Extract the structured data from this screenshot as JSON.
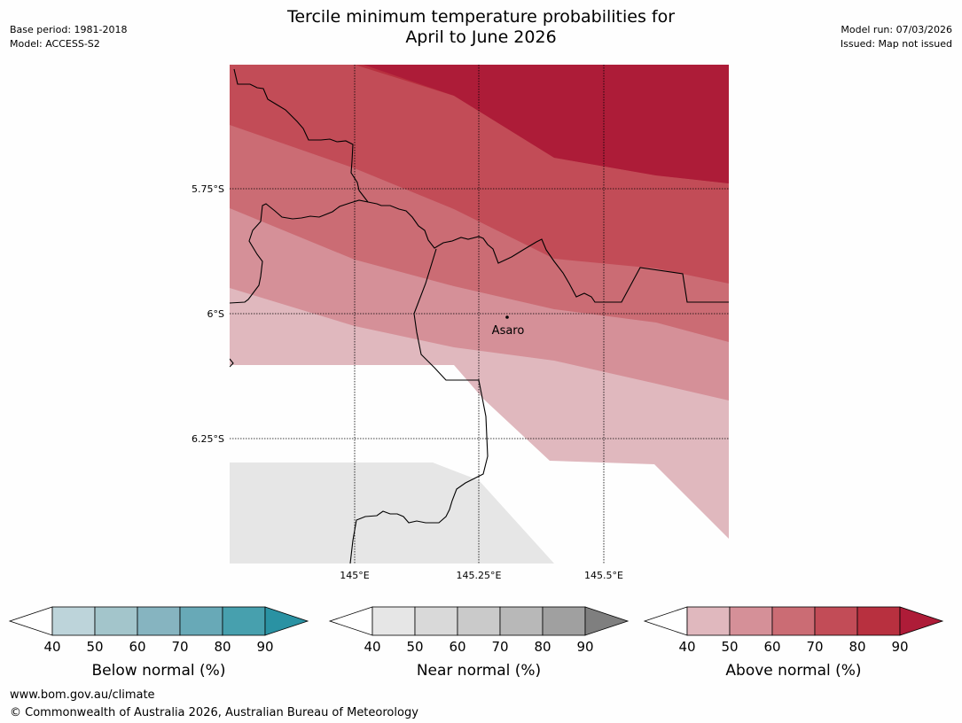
{
  "header": {
    "title_line1": "Tercile minimum temperature probabilities for",
    "title_line2": "April to June 2026",
    "base_period": "Base period: 1981-2018",
    "model": "Model: ACCESS-S2",
    "model_run": "Model run: 07/03/2026",
    "issued": "Issued: Map not issued"
  },
  "map": {
    "lat_labels": [
      "5.75°S",
      "6°S",
      "6.25°S"
    ],
    "lon_labels": [
      "145°E",
      "145.25°E",
      "145.5°E"
    ],
    "place": "Asaro",
    "colors": {
      "above": [
        "#e0b8be",
        "#d59098",
        "#cb6c74",
        "#c24c57",
        "#b8303f",
        "#ad1c38"
      ],
      "near": "#e6e6e6",
      "coast": "#000000"
    }
  },
  "legends": [
    {
      "title": "Below normal (%)",
      "ticks": [
        "40",
        "50",
        "60",
        "70",
        "80",
        "90"
      ],
      "colors": [
        "#bdd4da",
        "#a3c5cb",
        "#86b4c0",
        "#68a9b7",
        "#47a0ae",
        "#2a92a3"
      ]
    },
    {
      "title": "Near normal (%)",
      "ticks": [
        "40",
        "50",
        "60",
        "70",
        "80",
        "90"
      ],
      "colors": [
        "#e6e6e6",
        "#d9d9d9",
        "#cacaca",
        "#b8b8b8",
        "#a0a0a0",
        "#7f7f7f"
      ]
    },
    {
      "title": "Above normal (%)",
      "ticks": [
        "40",
        "50",
        "60",
        "70",
        "80",
        "90"
      ],
      "colors": [
        "#e0b8be",
        "#d59098",
        "#cb6c74",
        "#c24c57",
        "#b8303f",
        "#ae1c38"
      ]
    }
  ],
  "footer": {
    "url": "www.bom.gov.au/climate",
    "copyright": "© Commonwealth of Australia 2026, Australian Bureau of Meteorology"
  }
}
